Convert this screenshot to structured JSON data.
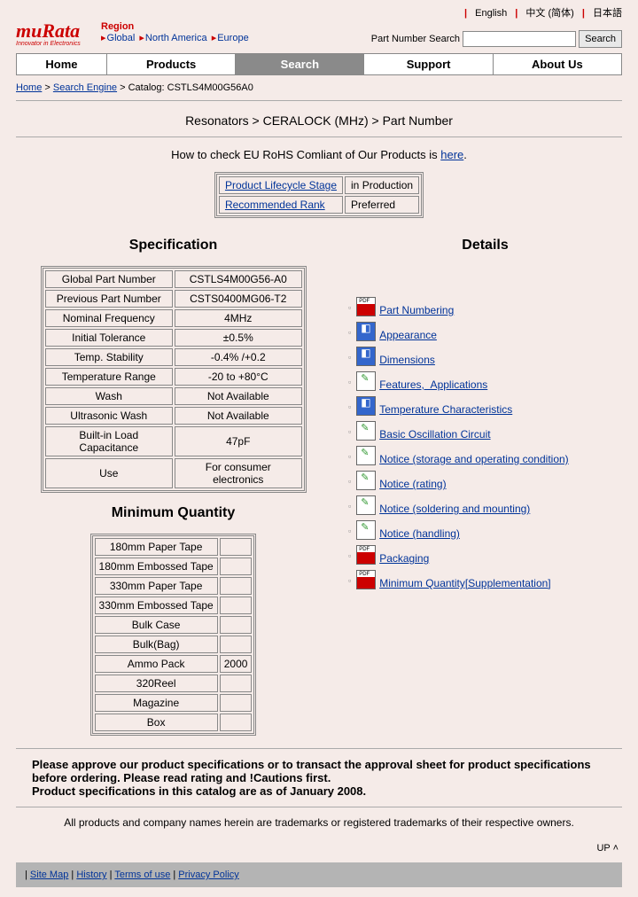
{
  "lang": {
    "english": "English",
    "chinese": "中文 (简体)",
    "japanese": "日本語"
  },
  "logo": {
    "main": "muRata",
    "sub": "Innovator in Electronics"
  },
  "region": {
    "label": "Region",
    "global": "Global",
    "na": "North America",
    "eu": "Europe"
  },
  "search": {
    "label": "Part Number Search",
    "button": "Search"
  },
  "nav": {
    "home": "Home",
    "products": "Products",
    "search": "Search",
    "support": "Support",
    "about": "About Us"
  },
  "crumb": {
    "home": "Home",
    "engine": "Search Engine",
    "catalog": "> Catalog: CSTLS4M00G56A0"
  },
  "category": "Resonators > CERALOCK (MHz) > Part Number",
  "rohs": {
    "prefix": "How to check EU RoHS Comliant of Our Products is ",
    "link": "here",
    "suffix": "."
  },
  "lifecycle": {
    "row1_label": "Product Lifecycle Stage",
    "row1_val": "in Production",
    "row2_label": "Recommended Rank",
    "row2_val": "Preferred"
  },
  "spec_title": "Specification",
  "spec": [
    {
      "l": "Global Part Number",
      "v": "CSTLS4M00G56-A0"
    },
    {
      "l": "Previous Part Number",
      "v": "CSTS0400MG06-T2"
    },
    {
      "l": "Nominal Frequency",
      "v": "4MHz"
    },
    {
      "l": "Initial Tolerance",
      "v": "±0.5%"
    },
    {
      "l": "Temp. Stability",
      "v": "-0.4% /+0.2"
    },
    {
      "l": "Temperature Range",
      "v": "-20 to +80°C"
    },
    {
      "l": "Wash",
      "v": "Not Available"
    },
    {
      "l": "Ultrasonic Wash",
      "v": "Not Available"
    },
    {
      "l": "Built-in Load Capacitance",
      "v": "47pF"
    },
    {
      "l": "Use",
      "v": "For consumer electronics"
    }
  ],
  "qty_title": "Minimum Quantity",
  "qty": [
    {
      "l": "180mm Paper Tape",
      "v": ""
    },
    {
      "l": "180mm Embossed Tape",
      "v": ""
    },
    {
      "l": "330mm Paper Tape",
      "v": ""
    },
    {
      "l": "330mm Embossed Tape",
      "v": ""
    },
    {
      "l": "Bulk Case",
      "v": ""
    },
    {
      "l": "Bulk(Bag)",
      "v": ""
    },
    {
      "l": "Ammo Pack",
      "v": "2000"
    },
    {
      "l": "320Reel",
      "v": ""
    },
    {
      "l": "Magazine",
      "v": ""
    },
    {
      "l": "Box",
      "v": ""
    }
  ],
  "details_title": "Details",
  "details": [
    {
      "icon": "pdf",
      "label": "Part Numbering"
    },
    {
      "icon": "dim",
      "label": "Appearance"
    },
    {
      "icon": "dim",
      "label": "Dimensions"
    },
    {
      "icon": "doc",
      "label": "Features,  Applications"
    },
    {
      "icon": "dim",
      "label": "Temperature Characteristics"
    },
    {
      "icon": "doc",
      "label": "Basic Oscillation Circuit"
    },
    {
      "icon": "doc",
      "label": "Notice (storage and operating condition)"
    },
    {
      "icon": "doc",
      "label": "Notice (rating)"
    },
    {
      "icon": "doc",
      "label": "Notice (soldering and mounting)"
    },
    {
      "icon": "doc",
      "label": "Notice (handling)"
    },
    {
      "icon": "pdf",
      "label": "Packaging"
    },
    {
      "icon": "pdf",
      "label": "Minimum Quantity[Supplementation]"
    }
  ],
  "notice": {
    "line1": "Please approve our product specifications or to transact the approval sheet for product specifications",
    "line2": "before ordering. Please read rating and !Cautions first.",
    "line3": "Product specifications in this catalog are as of January 2008."
  },
  "trademark": "All products and company names herein are trademarks or registered trademarks of their respective owners.",
  "up": "UP ˄",
  "footer": {
    "sitemap": "Site Map",
    "history": "History",
    "terms": "Terms of use",
    "privacy": "Privacy Policy"
  }
}
